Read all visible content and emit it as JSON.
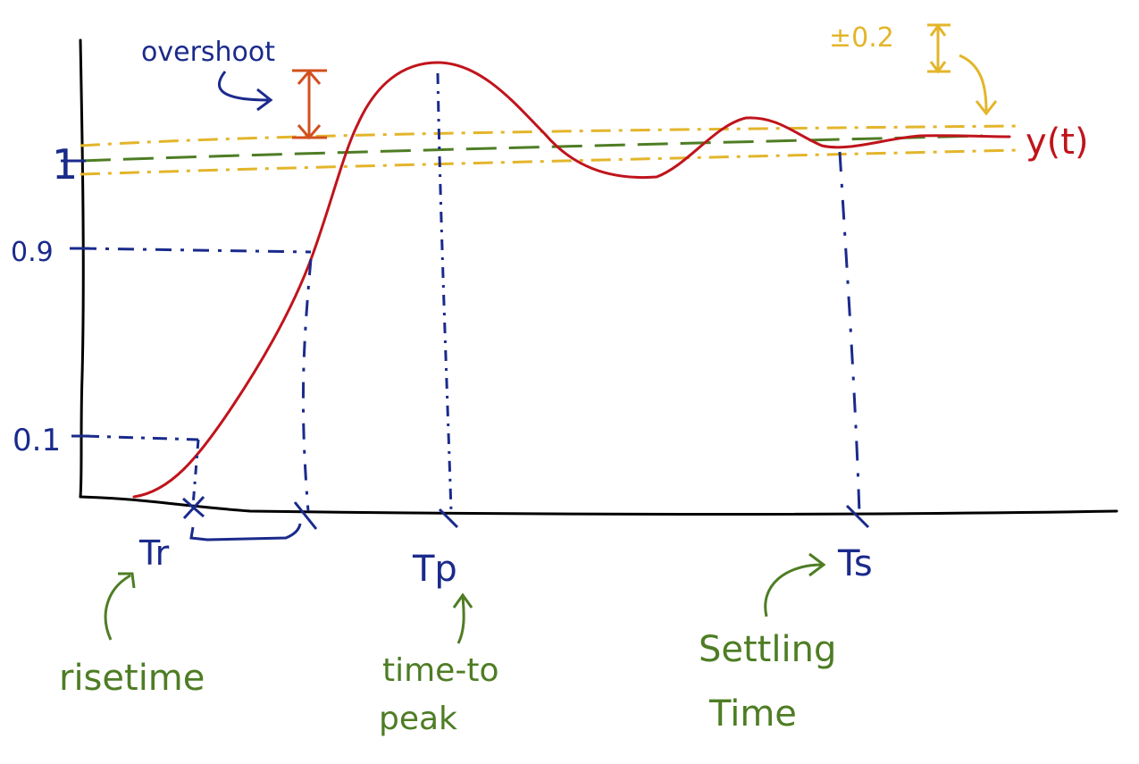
{
  "diagram": {
    "colors": {
      "blue": "#1a2a8c",
      "red": "#c0141c",
      "green": "#4e7d24",
      "yellow": "#e3b52a",
      "orange": "#d2501e",
      "axis": "#000000"
    },
    "y_tick_labels": {
      "one": "1",
      "p9": "0.9",
      "p1": "0.1"
    },
    "curve_label": "y(t)",
    "overshoot_label": "overshoot",
    "tolerance_label": "±0.2",
    "time_markers": {
      "rise": "Tr",
      "peak": "Tp",
      "settling": "Ts"
    },
    "notes": {
      "rise_line1": "risetime",
      "peak_line1": "time-to",
      "peak_line2": "peak",
      "settling_line1": "Settling",
      "settling_line2": "Time"
    }
  }
}
